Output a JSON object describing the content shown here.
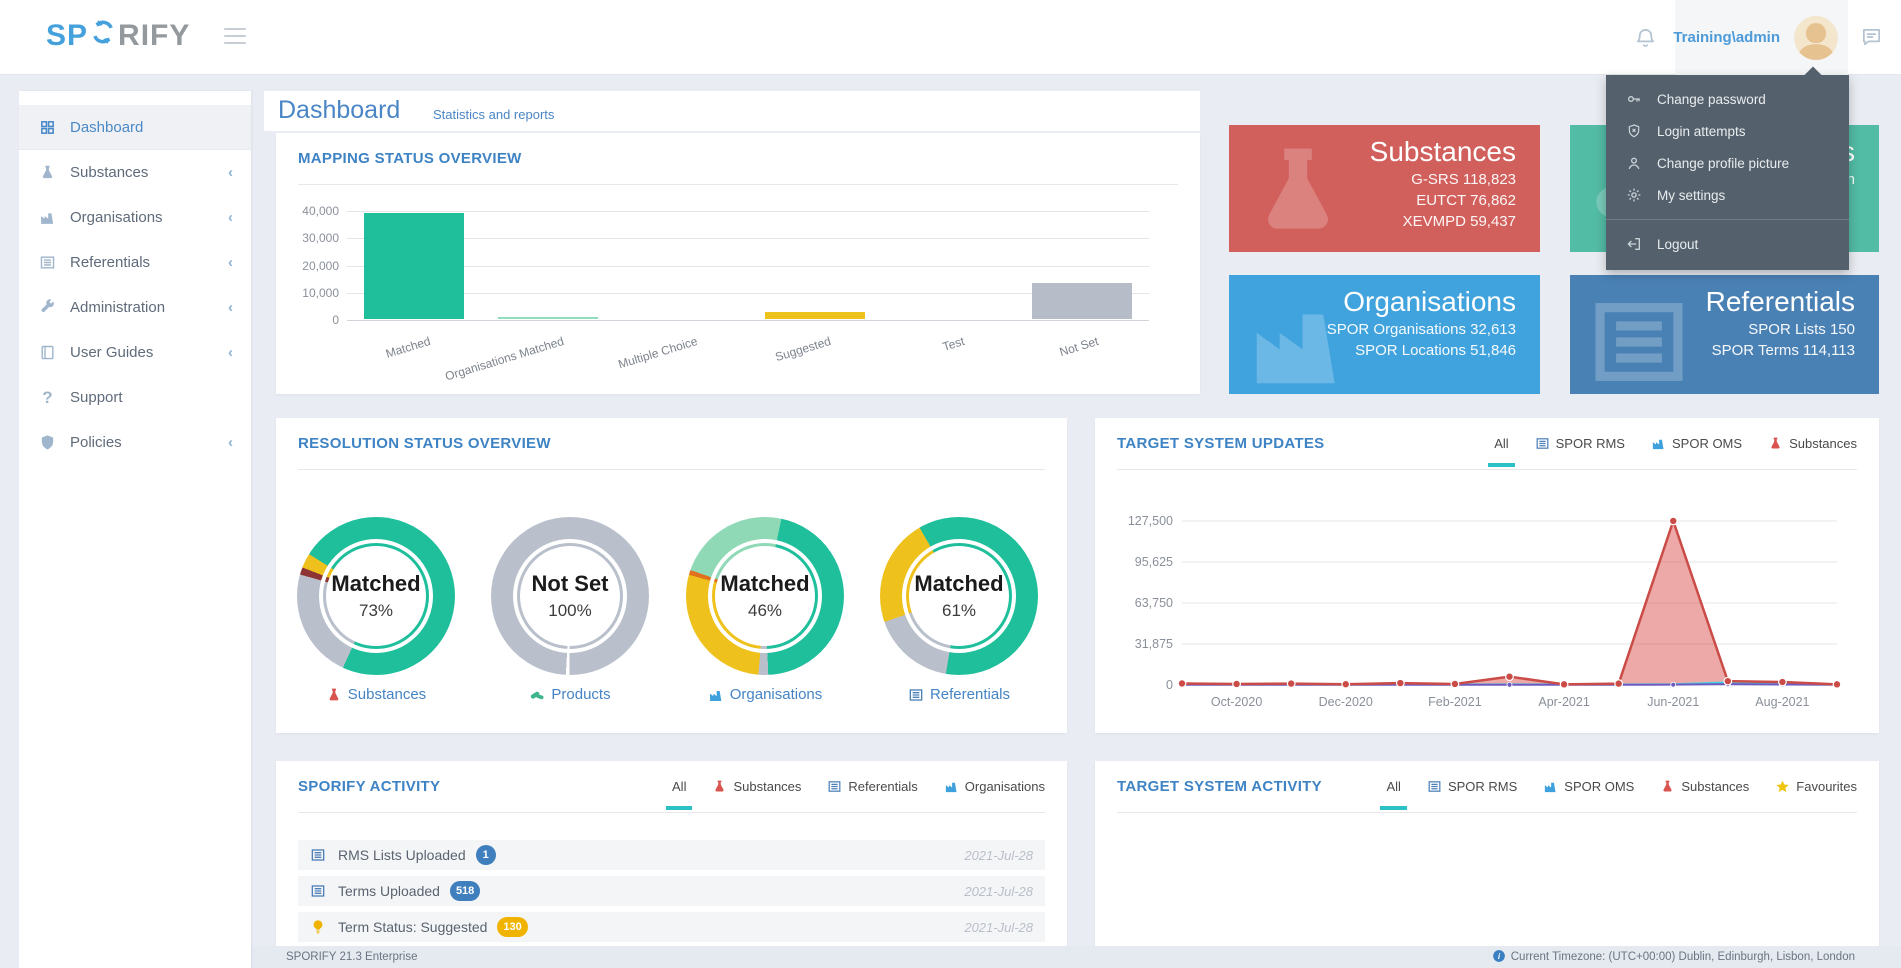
{
  "navbar": {
    "logo_sp": "SP",
    "logo_rify": "RIFY",
    "username": "Training\\admin"
  },
  "user_menu": {
    "items": [
      {
        "icon": "key",
        "label": "Change password"
      },
      {
        "icon": "shield-x",
        "label": "Login attempts"
      },
      {
        "icon": "person",
        "label": "Change profile picture"
      },
      {
        "icon": "gear",
        "label": "My settings"
      },
      {
        "icon": "logout",
        "label": "Logout",
        "divider_before": true
      }
    ]
  },
  "sidebar": {
    "items": [
      {
        "icon": "grid",
        "label": "Dashboard",
        "active": true
      },
      {
        "icon": "flask",
        "label": "Substances",
        "chevron": true
      },
      {
        "icon": "factory",
        "label": "Organisations",
        "chevron": true
      },
      {
        "icon": "list",
        "label": "Referentials",
        "chevron": true
      },
      {
        "icon": "wrench",
        "label": "Administration",
        "chevron": true
      },
      {
        "icon": "book",
        "label": "User Guides",
        "chevron": true
      },
      {
        "icon": "question",
        "label": "Support"
      },
      {
        "icon": "shield",
        "label": "Policies",
        "chevron": true
      }
    ]
  },
  "page": {
    "title": "Dashboard",
    "subtitle": "Statistics and reports"
  },
  "cards": [
    {
      "id": "substances",
      "title": "Substances",
      "lines": [
        "G-SRS 118,823",
        "EUTCT 76,862",
        "XEVMPD 59,437"
      ],
      "color": "#d15f5b",
      "icon": "flask"
    },
    {
      "id": "products",
      "title": "Products",
      "lines": [
        "Coming soon"
      ],
      "color": "#53bca5",
      "icon": "pills"
    },
    {
      "id": "organisations",
      "title": "Organisations",
      "lines": [
        "SPOR Organisations 32,613",
        "SPOR Locations 51,846"
      ],
      "color": "#41a3de",
      "icon": "factory"
    },
    {
      "id": "referentials",
      "title": "Referentials",
      "lines": [
        "SPOR Lists 150",
        "SPOR Terms 114,113"
      ],
      "color": "#4a81b5",
      "icon": "list"
    }
  ],
  "panels": {
    "mapping": {
      "title": "MAPPING STATUS OVERVIEW"
    },
    "resolution": {
      "title": "RESOLUTION STATUS OVERVIEW"
    },
    "updates": {
      "title": "TARGET SYSTEM UPDATES",
      "tabs": [
        {
          "label": "All",
          "active": true
        },
        {
          "icon": "list",
          "icon_color": "#4f81b8",
          "label": "SPOR RMS"
        },
        {
          "icon": "factory",
          "icon_color": "#3ea0dc",
          "label": "SPOR OMS"
        },
        {
          "icon": "flask",
          "icon_color": "#d9534f",
          "label": "Substances"
        }
      ]
    },
    "activity": {
      "title": "SPORIFY ACTIVITY",
      "tabs": [
        {
          "label": "All",
          "active": true
        },
        {
          "icon": "flask",
          "icon_color": "#d9534f",
          "label": "Substances"
        },
        {
          "icon": "list",
          "icon_color": "#4f81b8",
          "label": "Referentials"
        },
        {
          "icon": "factory",
          "icon_color": "#3ea0dc",
          "label": "Organisations"
        }
      ],
      "rows": [
        {
          "icon": "list",
          "icon_color": "#4f81b8",
          "label": "RMS Lists Uploaded",
          "badge": "1",
          "badge_color": "#3f7fbe",
          "date": "2021-Jul-28"
        },
        {
          "icon": "list",
          "icon_color": "#4f81b8",
          "label": "Terms Uploaded",
          "badge": "518",
          "badge_color": "#3f7fbe",
          "date": "2021-Jul-28"
        },
        {
          "icon": "bulb",
          "icon_color": "#f0b400",
          "label": "Term Status: Suggested",
          "badge": "130",
          "badge_color": "#f0b400",
          "date": "2021-Jul-28"
        }
      ]
    },
    "target_activity": {
      "title": "TARGET SYSTEM ACTIVITY",
      "tabs": [
        {
          "label": "All",
          "active": true
        },
        {
          "icon": "list",
          "icon_color": "#4f81b8",
          "label": "SPOR RMS"
        },
        {
          "icon": "factory",
          "icon_color": "#3ea0dc",
          "label": "SPOR OMS"
        },
        {
          "icon": "flask",
          "icon_color": "#d9534f",
          "label": "Substances"
        },
        {
          "icon": "star",
          "icon_color": "#f1c40f",
          "label": "Favourites"
        }
      ]
    }
  },
  "chart_data": [
    {
      "type": "bar",
      "title": "MAPPING STATUS OVERVIEW",
      "categories": [
        "Matched",
        "Organisations Matched",
        "Multiple Choice",
        "Suggested",
        "Test",
        "Not Set"
      ],
      "values": [
        38800,
        700,
        0,
        2600,
        0,
        13100
      ],
      "colors": [
        "#1fbf9c",
        "#90debe",
        "#1fbf9c",
        "#eec21d",
        "#1fbf9c",
        "#b6bdc9"
      ],
      "ylim": [
        0,
        40000
      ],
      "yticks": [
        0,
        10000,
        20000,
        30000,
        40000
      ],
      "ytick_labels": [
        "0",
        "10,000",
        "20,000",
        "30,000",
        "40,000"
      ],
      "grid": true,
      "legend": "none"
    },
    {
      "type": "pie",
      "title": "RESOLUTION STATUS OVERVIEW",
      "donuts": [
        {
          "label": "Matched",
          "pct": "73%",
          "start": 302,
          "segments": [
            {
              "name": "Matched",
              "color": "#1fbf9c",
              "value": 73
            },
            {
              "name": "Not Set",
              "color": "#b9c0cb",
              "value": 22.5
            },
            {
              "name": "Error",
              "color": "#8f3434",
              "value": 1.5
            },
            {
              "name": "Suggested",
              "color": "#efc11d",
              "value": 3
            }
          ],
          "caption": {
            "icon": "flask",
            "icon_color": "#d9534f",
            "label": "Substances"
          }
        },
        {
          "label": "Not Set",
          "pct": "100%",
          "start": 183,
          "segments": [
            {
              "name": "Not Set",
              "color": "#b9c0cb",
              "value": 99.3
            },
            {
              "name": "gap",
              "color": "#ffffff",
              "value": 0.7
            }
          ],
          "caption": {
            "icon": "pills",
            "icon_color": "#3fb58e",
            "label": "Products"
          }
        },
        {
          "label": "Matched",
          "pct": "46%",
          "start": 12,
          "segments": [
            {
              "name": "Matched",
              "color": "#1fbf9c",
              "value": 46
            },
            {
              "name": "Not Set",
              "color": "#b9c0cb",
              "value": 2
            },
            {
              "name": "Suggested",
              "color": "#efc11d",
              "value": 28
            },
            {
              "name": "Error",
              "color": "#e2711d",
              "value": 1
            },
            {
              "name": "Org Matched",
              "color": "#8fd9b6",
              "value": 23
            }
          ],
          "caption": {
            "icon": "factory",
            "icon_color": "#3ea0dc",
            "label": "Organisations"
          }
        },
        {
          "label": "Matched",
          "pct": "61%",
          "start": 330,
          "segments": [
            {
              "name": "Matched",
              "color": "#1fbf9c",
              "value": 61
            },
            {
              "name": "Not Set",
              "color": "#b9c0cb",
              "value": 17
            },
            {
              "name": "Suggested",
              "color": "#efc11d",
              "value": 22
            }
          ],
          "caption": {
            "icon": "list",
            "icon_color": "#4f81b8",
            "label": "Referentials"
          }
        }
      ]
    },
    {
      "type": "area",
      "title": "TARGET SYSTEM UPDATES",
      "x": [
        "Sep-2020",
        "Oct-2020",
        "Nov-2020",
        "Dec-2020",
        "Jan-2021",
        "Feb-2021",
        "Mar-2021",
        "Apr-2021",
        "May-2021",
        "Jun-2021",
        "Jul-2021",
        "Aug-2021",
        "Sep-2021"
      ],
      "x_axis_labels": [
        "Oct-2020",
        "Dec-2020",
        "Feb-2021",
        "Apr-2021",
        "Jun-2021",
        "Aug-2021"
      ],
      "x_axis_label_indices": [
        1,
        3,
        5,
        7,
        9,
        11
      ],
      "series": [
        {
          "name": "Substances",
          "color": "#cb4b47",
          "fill": true,
          "values": [
            1200,
            800,
            1100,
            600,
            1500,
            800,
            6500,
            500,
            1100,
            127500,
            3000,
            2300,
            500
          ]
        },
        {
          "name": "SPOR RMS",
          "color": "#45d3e2",
          "fill": false,
          "values": [
            500,
            400,
            450,
            350,
            500,
            400,
            500,
            350,
            400,
            600,
            2000,
            1000,
            450
          ]
        },
        {
          "name": "SPOR OMS",
          "color": "#6f5bc0",
          "fill": false,
          "values": [
            200,
            150,
            180,
            150,
            200,
            160,
            200,
            150,
            170,
            250,
            700,
            350,
            180
          ]
        }
      ],
      "ylim": [
        0,
        127500
      ],
      "yticks": [
        0,
        31875,
        63750,
        95625,
        127500
      ],
      "ytick_labels": [
        "0",
        "31,875",
        "63,750",
        "95,625",
        "127,500"
      ],
      "grid": true,
      "legend": "none"
    }
  ],
  "footer": {
    "left": "SPORIFY 21.3 Enterprise",
    "right": "Current Timezone: (UTC+00:00) Dublin, Edinburgh, Lisbon, London"
  },
  "colors": {
    "accent_teal": "#2cc0c7",
    "heading_blue": "#3e83c4",
    "link_blue": "#4d9bd8",
    "menu_bg": "#54616c"
  }
}
